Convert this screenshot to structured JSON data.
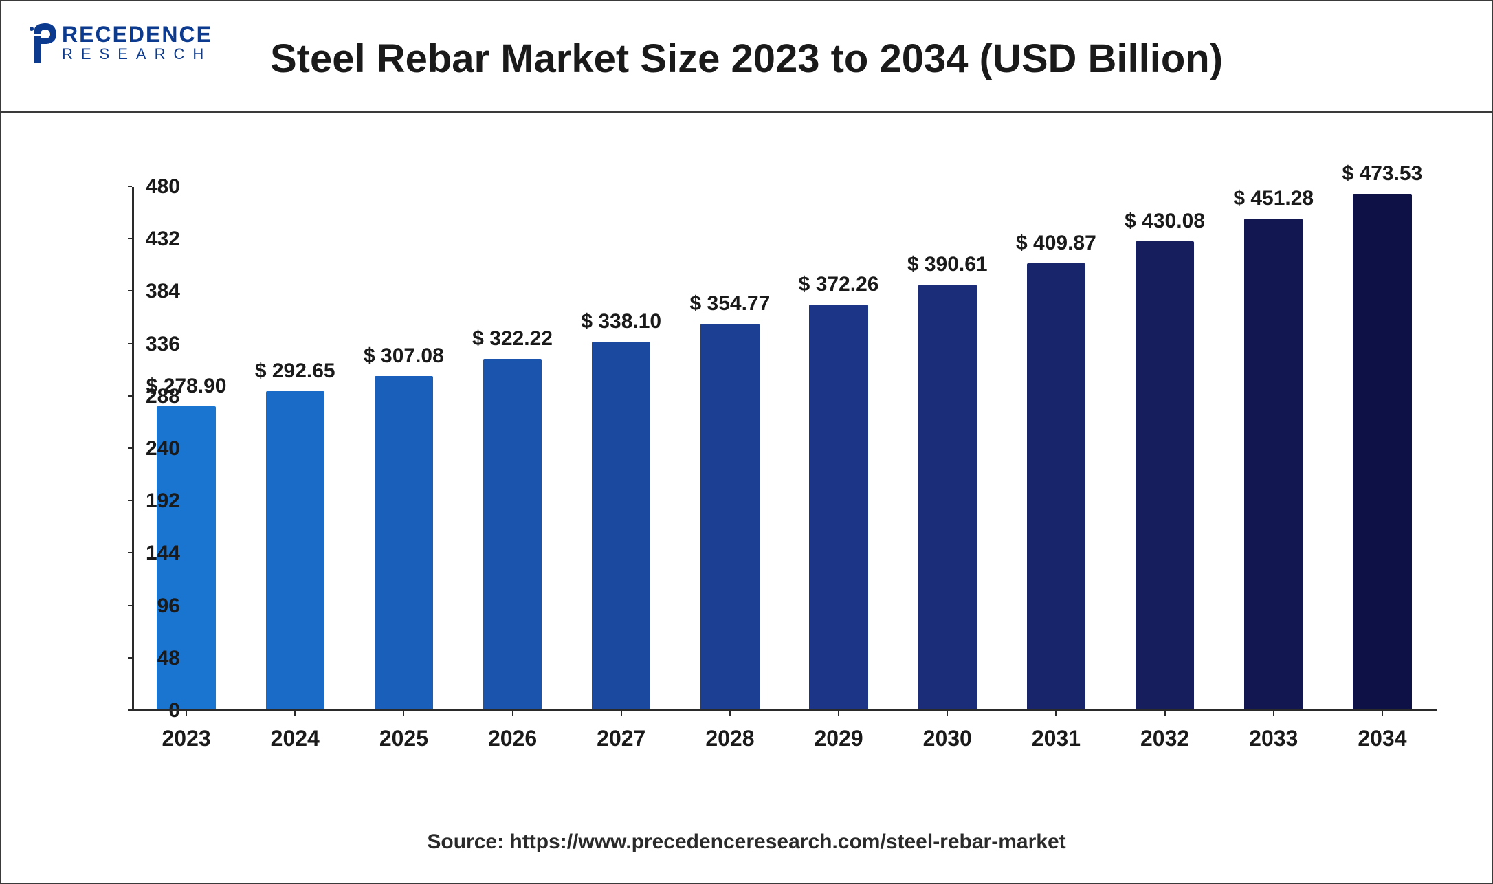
{
  "logo": {
    "top": "RECEDENCE",
    "bottom": "RESEARCH",
    "color": "#0b3a8f"
  },
  "chart": {
    "type": "bar",
    "title": "Steel Rebar Market Size 2023 to 2034 (USD Billion)",
    "title_fontsize": 58,
    "title_color": "#1a1a1a",
    "background_color": "#ffffff",
    "axis_color": "#2a2a2a",
    "ylim": [
      0,
      480
    ],
    "ytick_step": 48,
    "yticks": [
      0,
      48,
      96,
      144,
      192,
      240,
      288,
      336,
      384,
      432,
      480
    ],
    "tick_fontsize": 30,
    "xtick_fontsize": 32,
    "bar_width_ratio": 0.54,
    "value_prefix": "$ ",
    "value_label_fontsize": 30,
    "categories": [
      "2023",
      "2024",
      "2025",
      "2026",
      "2027",
      "2028",
      "2029",
      "2030",
      "2031",
      "2032",
      "2033",
      "2034"
    ],
    "values": [
      278.9,
      292.65,
      307.08,
      322.22,
      338.1,
      354.77,
      372.26,
      390.61,
      409.87,
      430.08,
      451.28,
      473.53
    ],
    "value_labels": [
      "278.90",
      "292.65",
      "307.08",
      "322.22",
      "338.10",
      "354.77",
      "372.26",
      "390.61",
      "409.87",
      "430.08",
      "451.28",
      "473.53"
    ],
    "bar_colors": [
      "#1a75d1",
      "#1a6bc7",
      "#1a5fba",
      "#1a54ad",
      "#1c49a0",
      "#1d3f93",
      "#1d3586",
      "#1b2d78",
      "#19256b",
      "#161e5e",
      "#121751",
      "#0e1145"
    ]
  },
  "source": {
    "label": "Source:  https://www.precedenceresearch.com/steel-rebar-market",
    "fontsize": 30,
    "color": "#2a2a2a"
  }
}
